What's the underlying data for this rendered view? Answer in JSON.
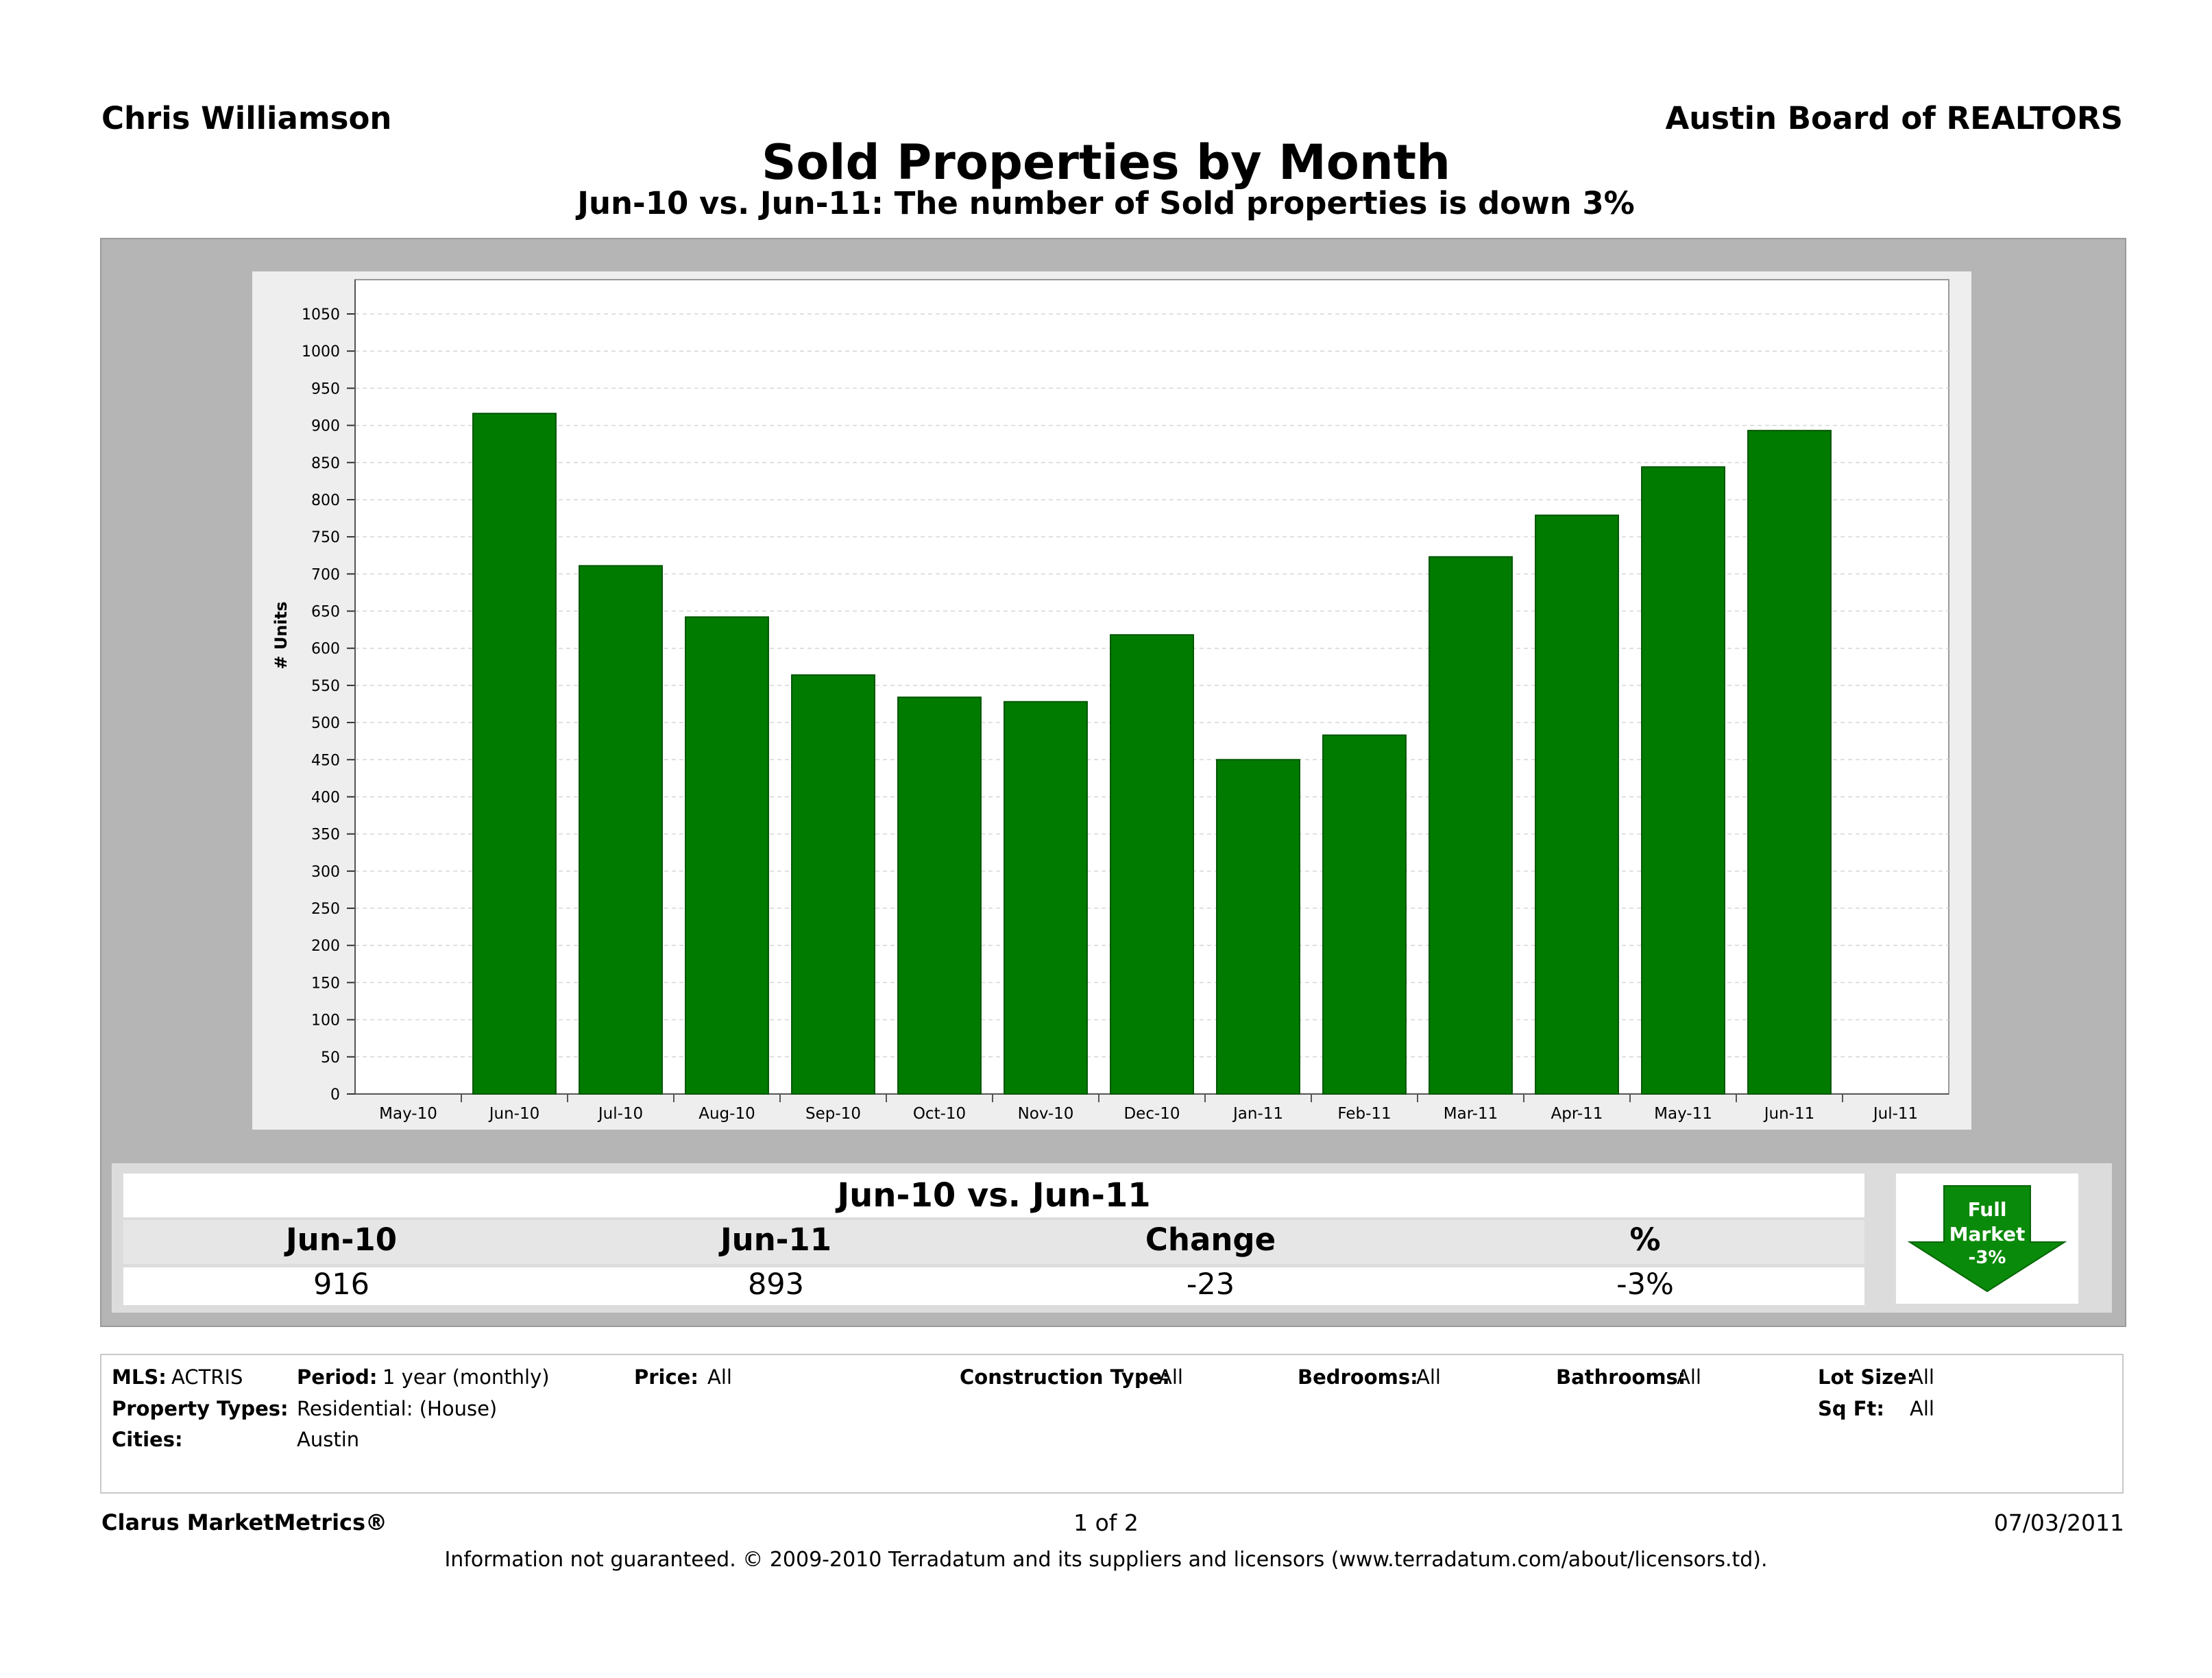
{
  "header": {
    "agent": "Chris Williamson",
    "board": "Austin Board of REALTORS",
    "title": "Sold Properties by Month",
    "subtitle": "Jun-10 vs. Jun-11: The number of Sold properties is down 3%"
  },
  "chart_data": {
    "type": "bar",
    "categories": [
      "Jun-10",
      "Jul-10",
      "Aug-10",
      "Sep-10",
      "Oct-10",
      "Nov-10",
      "Dec-10",
      "Jan-11",
      "Feb-11",
      "Mar-11",
      "Apr-11",
      "May-11",
      "Jun-11"
    ],
    "axis_ticks": [
      "May-10",
      "Jun-10",
      "Jul-10",
      "Aug-10",
      "Sep-10",
      "Oct-10",
      "Nov-10",
      "Dec-10",
      "Jan-11",
      "Feb-11",
      "Mar-11",
      "Apr-11",
      "May-11",
      "Jun-11",
      "Jul-11"
    ],
    "values": [
      916,
      711,
      642,
      564,
      534,
      528,
      618,
      450,
      483,
      723,
      779,
      844,
      893
    ],
    "ylabel": "# Units",
    "ylim": [
      0,
      1050
    ],
    "ytick_step": 50,
    "grid": true,
    "bar_color": "#007b00"
  },
  "comparison": {
    "title": "Jun-10 vs. Jun-11",
    "headers": [
      "Jun-10",
      "Jun-11",
      "Change",
      "%"
    ],
    "values": [
      "916",
      "893",
      "-23",
      "-3%"
    ]
  },
  "badge": {
    "line1": "Full",
    "line2": "Market",
    "line3": "-3%",
    "color": "#0a8a0a"
  },
  "filters": {
    "mls_label": "MLS:",
    "mls_value": "ACTRIS",
    "period_label": "Period:",
    "period_value": "1 year (monthly)",
    "price_label": "Price:",
    "price_value": "All",
    "construction_label": "Construction Type:",
    "construction_value": "All",
    "bedrooms_label": "Bedrooms:",
    "bedrooms_value": "All",
    "bathrooms_label": "Bathrooms:",
    "bathrooms_value": "All",
    "lotsize_label": "Lot Size:",
    "lotsize_value": "All",
    "proptypes_label": "Property Types:",
    "proptypes_value": "Residential: (House)",
    "sqft_label": "Sq Ft:",
    "sqft_value": "All",
    "cities_label": "Cities:",
    "cities_value": "Austin"
  },
  "footer": {
    "brand": "Clarus MarketMetrics®",
    "page": "1 of 2",
    "date": "07/03/2011",
    "disclaimer": "Information not guaranteed.  © 2009-2010 Terradatum and its suppliers and licensors (www.terradatum.com/about/licensors.td)."
  }
}
